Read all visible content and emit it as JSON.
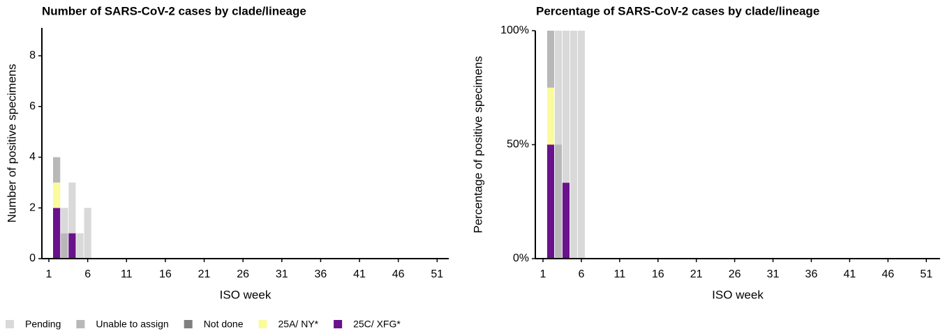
{
  "chart_data": [
    {
      "type": "stacked-bar",
      "title": "Number of SARS-CoV-2 cases by clade/lineage",
      "x_label": "ISO week",
      "y_label": "Number of positive specimens",
      "x": [
        2,
        3,
        4,
        5,
        6
      ],
      "series": [
        {
          "name": "Pending",
          "color": "#d9d9d9",
          "values": [
            0,
            1,
            2,
            1,
            2
          ]
        },
        {
          "name": "Unable to assign",
          "color": "#b8b8b8",
          "values": [
            1,
            1,
            0,
            0,
            0
          ]
        },
        {
          "name": "Not done",
          "color": "#808080",
          "values": [
            0,
            0,
            0,
            0,
            0
          ]
        },
        {
          "name": "25A/ NY*",
          "color": "#fbfb9b",
          "values": [
            1,
            0,
            0,
            0,
            0
          ]
        },
        {
          "name": "25C/ XFG*",
          "color": "#6a118c",
          "values": [
            2,
            0,
            1,
            0,
            0
          ]
        }
      ],
      "xlim": [
        0.1,
        52.5
      ],
      "xticks": [
        1,
        6,
        11,
        16,
        21,
        26,
        31,
        36,
        41,
        46,
        51
      ],
      "ylim": [
        0,
        9.1
      ],
      "yticks": [
        0,
        2,
        4,
        6,
        8
      ]
    },
    {
      "type": "stacked-bar",
      "title": "Percentage of SARS-CoV-2 cases by clade/lineage",
      "x_label": "ISO week",
      "y_label": "Percentage of positive specimens",
      "x": [
        2,
        3,
        4,
        5,
        6
      ],
      "series": [
        {
          "color": "#d9d9d9",
          "values": [
            0,
            50,
            66.7,
            100,
            100
          ]
        },
        {
          "color": "#b8b8b8",
          "values": [
            25,
            50,
            0,
            0,
            0
          ]
        },
        {
          "color": "#808080",
          "values": [
            0,
            0,
            0,
            0,
            0
          ]
        },
        {
          "color": "#fbfb9b",
          "values": [
            25,
            0,
            0,
            0,
            0
          ]
        },
        {
          "color": "#6a118c",
          "values": [
            50,
            0,
            33.3,
            0,
            0
          ]
        }
      ],
      "xlim": [
        0,
        52.8
      ],
      "xticks": [
        1,
        6,
        11,
        16,
        21,
        26,
        31,
        36,
        41,
        46,
        51
      ],
      "ylim": [
        0,
        100
      ],
      "yticks": [
        {
          "value": 0,
          "label": "0%"
        },
        {
          "value": 50,
          "label": "50%"
        },
        {
          "value": 100,
          "label": "100%"
        }
      ]
    }
  ]
}
